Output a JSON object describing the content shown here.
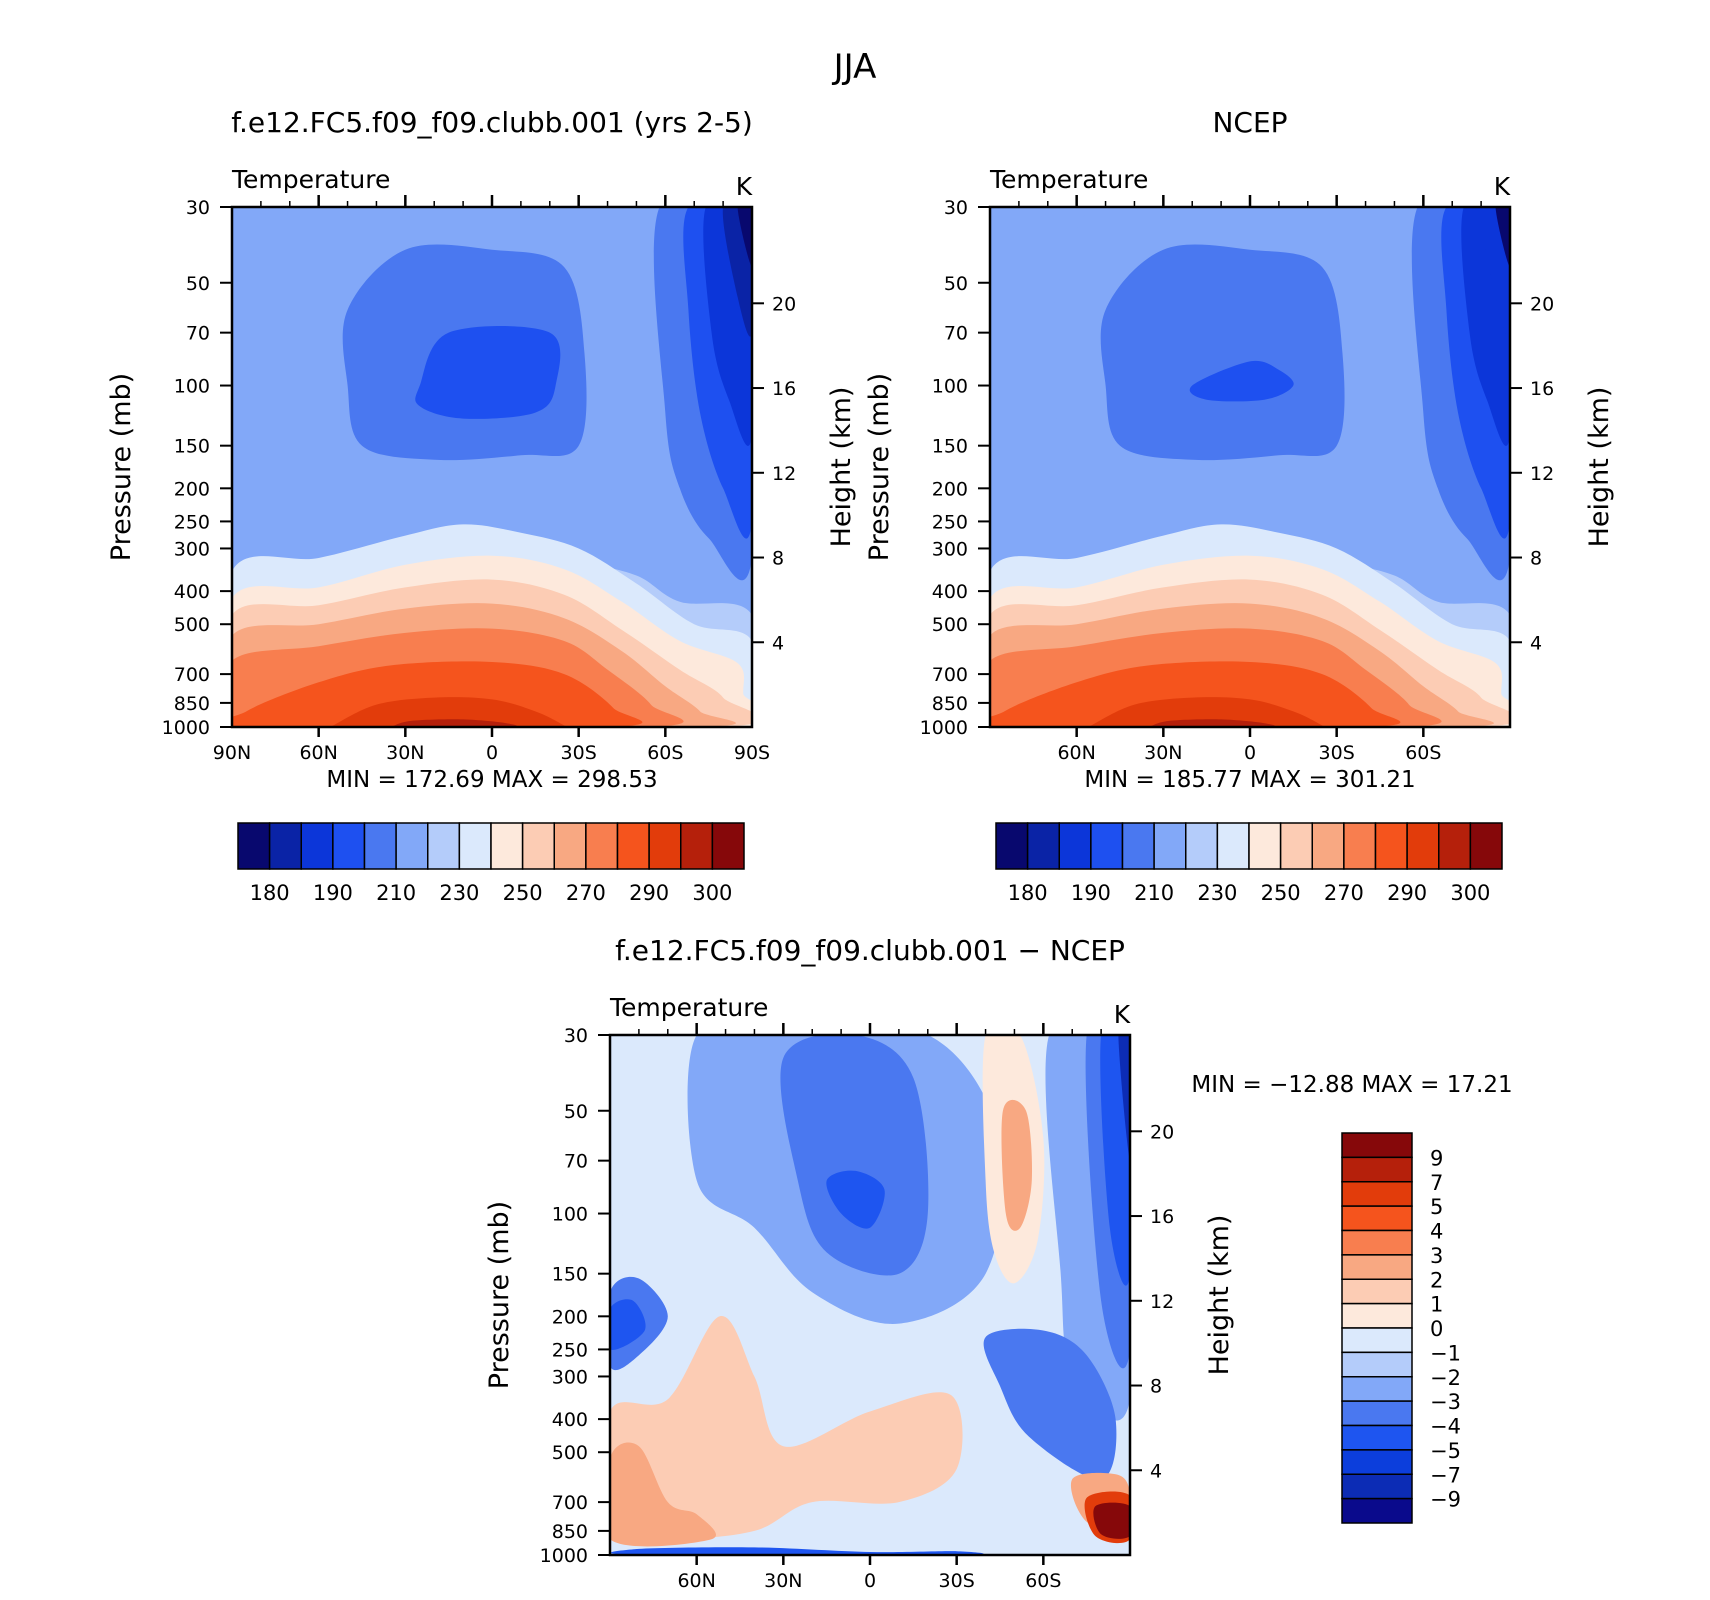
{
  "figure": {
    "title": "JJA",
    "panels": [
      {
        "id": "model",
        "title": "f.e12.FC5.f09_f09.clubb.001 (yrs 2-5)",
        "subtitle": "Temperature",
        "units": "K",
        "stats": "MIN =  172.69   MAX =  298.53"
      },
      {
        "id": "obs",
        "title": "NCEP",
        "subtitle": "Temperature",
        "units": "K",
        "stats": "MIN =  185.77   MAX =  301.21"
      },
      {
        "id": "diff",
        "title": "f.e12.FC5.f09_f09.clubb.001 − NCEP",
        "subtitle": "Temperature",
        "units": "K",
        "stats": "MIN = −12.88   MAX =   17.21"
      }
    ]
  },
  "chart_data": [
    {
      "type": "heatmap",
      "title": "f.e12.FC5.f09_f09.clubb.001 (yrs 2-5)",
      "variable": "Temperature",
      "units": "K",
      "ylabel": "Pressure (mb)",
      "ylabel_right": "Height (km)",
      "xticks": [
        "90N",
        "60N",
        "30N",
        "0",
        "30S",
        "60S",
        "90S"
      ],
      "yticks_pressure": [
        "30",
        "50",
        "70",
        "100",
        "150",
        "200",
        "250",
        "300",
        "400",
        "500",
        "700",
        "850",
        "1000"
      ],
      "yticks_height": [
        "20",
        "16",
        "12",
        "8",
        "4"
      ],
      "colorbar_ticks": [
        "180",
        "190",
        "210",
        "230",
        "250",
        "270",
        "290",
        "300"
      ],
      "min": 172.69,
      "max": 298.53
    },
    {
      "type": "heatmap",
      "title": "NCEP",
      "variable": "Temperature",
      "units": "K",
      "ylabel": "Pressure (mb)",
      "ylabel_right": "Height (km)",
      "xticks": [
        "60N",
        "30N",
        "0",
        "30S",
        "60S"
      ],
      "yticks_pressure": [
        "30",
        "50",
        "70",
        "100",
        "150",
        "200",
        "250",
        "300",
        "400",
        "500",
        "700",
        "850",
        "1000"
      ],
      "yticks_height": [
        "20",
        "16",
        "12",
        "8",
        "4"
      ],
      "colorbar_ticks": [
        "180",
        "190",
        "210",
        "230",
        "250",
        "270",
        "290",
        "300"
      ],
      "min": 185.77,
      "max": 301.21
    },
    {
      "type": "heatmap",
      "title": "f.e12.FC5.f09_f09.clubb.001 − NCEP",
      "variable": "Temperature",
      "units": "K",
      "ylabel": "Pressure (mb)",
      "ylabel_right": "Height (km)",
      "xticks": [
        "60N",
        "30N",
        "0",
        "30S",
        "60S"
      ],
      "yticks_pressure": [
        "30",
        "50",
        "70",
        "100",
        "150",
        "200",
        "250",
        "300",
        "400",
        "500",
        "700",
        "850",
        "1000"
      ],
      "yticks_height": [
        "20",
        "16",
        "12",
        "8",
        "4"
      ],
      "colorbar_ticks": [
        "9",
        "7",
        "5",
        "4",
        "3",
        "2",
        "1",
        "0",
        "−1",
        "−2",
        "−3",
        "−4",
        "−5",
        "−7",
        "−9"
      ],
      "min": -12.88,
      "max": 17.21
    }
  ],
  "palettes": {
    "abs": [
      "#08086e",
      "#0a23a6",
      "#0c36d9",
      "#1e50f0",
      "#4a78f0",
      "#82a8f8",
      "#b4ccfa",
      "#dbe9fc",
      "#fde9dc",
      "#fcccb4",
      "#f8a882",
      "#f87e4f",
      "#f5541d",
      "#e23c0b",
      "#b5200b",
      "#86080a"
    ],
    "diff": [
      "#0a0a8c",
      "#0c2cb5",
      "#0c3edc",
      "#1e55f0",
      "#4a78f0",
      "#82a8f8",
      "#b4ccfa",
      "#dbe9fc",
      "#fde9dc",
      "#fcccb4",
      "#f8a882",
      "#f87e4f",
      "#f5541d",
      "#e23c0b",
      "#b5200b",
      "#86080a"
    ]
  }
}
